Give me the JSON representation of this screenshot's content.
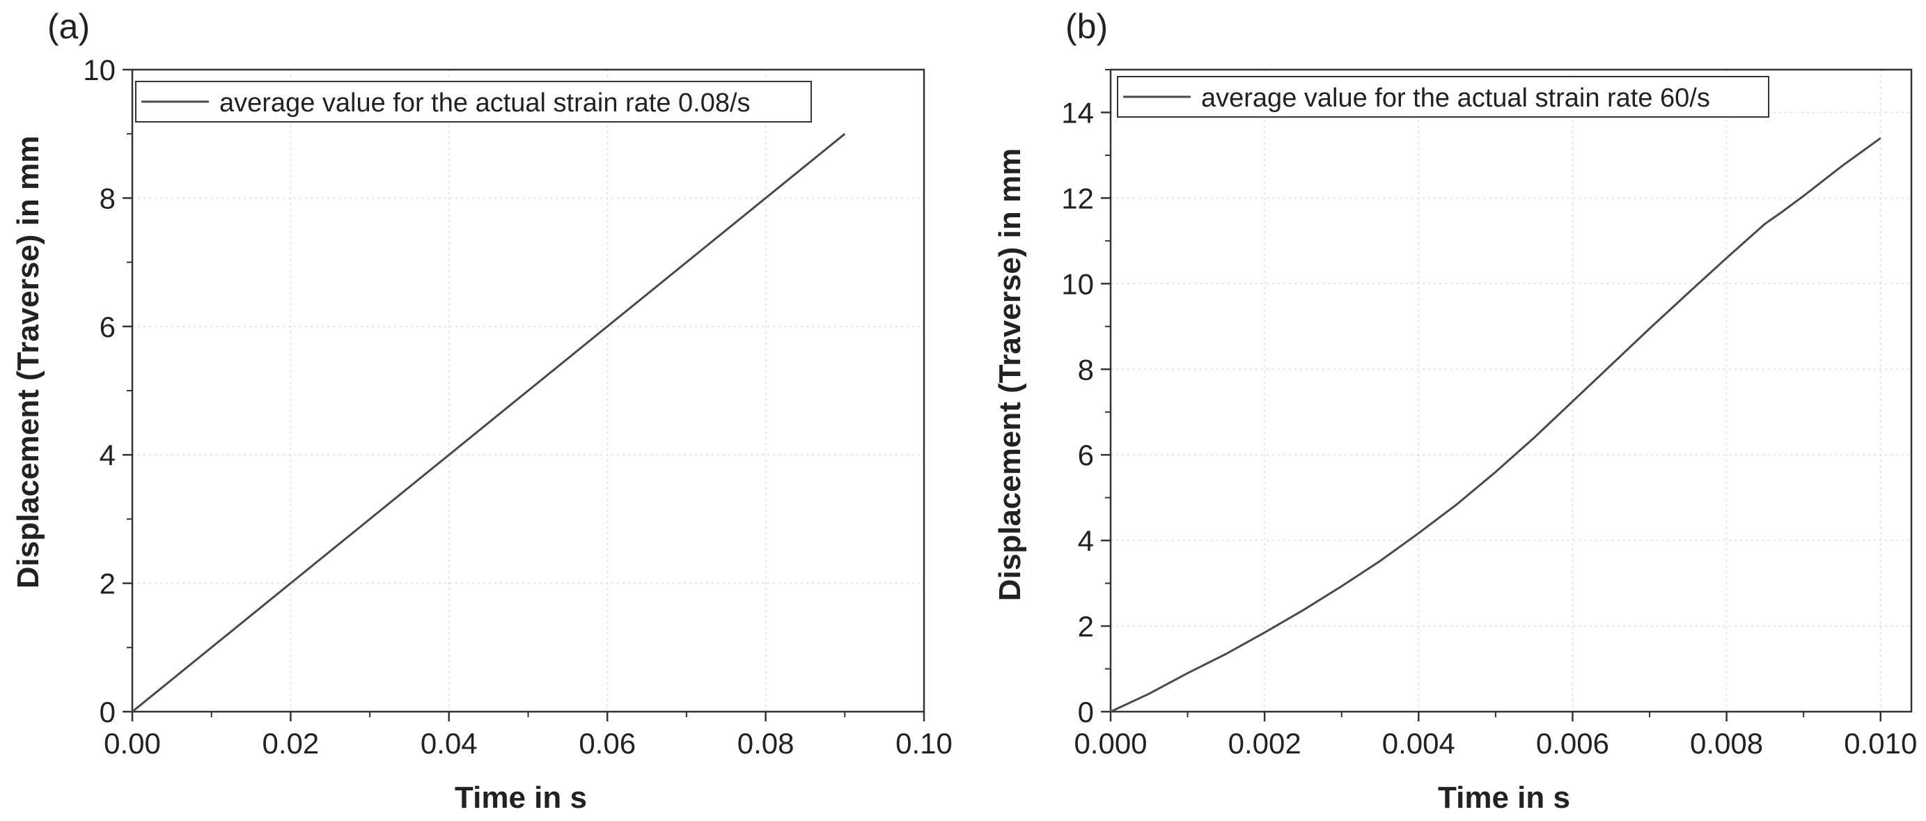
{
  "chart_data": [
    {
      "panel": "(a)",
      "type": "line",
      "xlabel": "Time in s",
      "ylabel": "Displacement (Traverse) in mm",
      "xlim": [
        0,
        0.1
      ],
      "ylim": [
        0,
        10
      ],
      "xticks": [
        "0.00",
        "0.02",
        "0.04",
        "0.06",
        "0.08",
        "0.10"
      ],
      "yticks": [
        "0",
        "2",
        "4",
        "6",
        "8",
        "10"
      ],
      "grid": true,
      "legend_position": "top-left",
      "series": [
        {
          "name": "average value for the actual strain rate 0.08/s",
          "color": "#4a4a4a",
          "x": [
            0,
            0.09
          ],
          "y": [
            0,
            9.0
          ]
        }
      ]
    },
    {
      "panel": "(b)",
      "type": "line",
      "xlabel": "Time in s",
      "ylabel": "Displacement (Traverse) in mm",
      "xlim": [
        0,
        0.0104
      ],
      "ylim": [
        0,
        15
      ],
      "xticks": [
        "0.000",
        "0.002",
        "0.004",
        "0.006",
        "0.008",
        "0.010"
      ],
      "yticks": [
        "0",
        "2",
        "4",
        "6",
        "8",
        "10",
        "12",
        "14"
      ],
      "grid": true,
      "legend_position": "top-left",
      "series": [
        {
          "name": "average value for the actual strain rate 60/s",
          "color": "#4a4a4a",
          "x": [
            0,
            0.0005,
            0.001,
            0.0015,
            0.002,
            0.0025,
            0.003,
            0.0035,
            0.004,
            0.0045,
            0.005,
            0.0055,
            0.006,
            0.0065,
            0.007,
            0.0075,
            0.008,
            0.0085,
            0.0087,
            0.009,
            0.0095,
            0.01
          ],
          "y": [
            0,
            0.42,
            0.9,
            1.35,
            1.85,
            2.37,
            2.93,
            3.52,
            4.17,
            4.85,
            5.6,
            6.4,
            7.25,
            8.1,
            8.95,
            9.78,
            10.6,
            11.4,
            11.65,
            12.05,
            12.75,
            13.4
          ]
        }
      ]
    }
  ]
}
